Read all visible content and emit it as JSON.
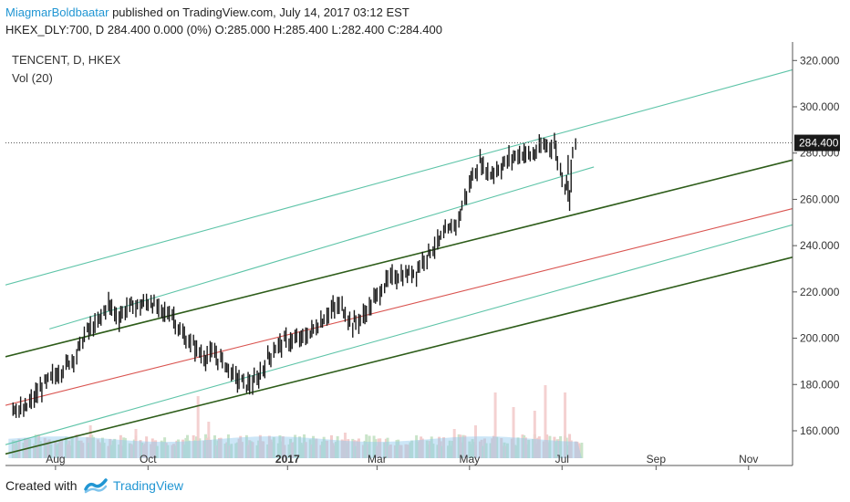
{
  "header": {
    "author": "MiagmarBoldbaatar",
    "published": " published on TradingView.com, July 14, 2017 03:12 EST",
    "ohlc_line": "HKEX_DLY:700, D  284.400 0.000 (0%) O:285.000 H:285.400 L:282.400 C:284.400"
  },
  "legend": {
    "symbol": "TENCENT, D, HKEX",
    "indicator": "Vol (20)"
  },
  "footer": {
    "created_with": "Created with",
    "brand": "TradingView"
  },
  "colors": {
    "candle": "#1a1a1a",
    "channel_outer": "#2e5d1a",
    "channel_mid": "#d9534f",
    "channel_inner": "#5ec4a8",
    "volume_up": "#c9e4c9",
    "volume_down": "#f3cccc",
    "volume_ma": "#8fc8ee",
    "price_label_bg": "#1a1a1a",
    "axis_text": "#333333",
    "brand": "#2196d3"
  },
  "chart_data": {
    "type": "line",
    "title": "TENCENT, D, HKEX",
    "last_price": "284.400",
    "y_axis": {
      "ticks": [
        "320.000",
        "300.000",
        "280.000",
        "260.000",
        "240.000",
        "220.000",
        "200.000",
        "180.000",
        "160.000"
      ],
      "range": [
        145,
        328
      ]
    },
    "x_axis": {
      "ticks": [
        "Aug",
        "Oct",
        "2017",
        "Mar",
        "May",
        "Jul",
        "Sep",
        "Nov"
      ],
      "bold_tick": "2017"
    },
    "price_series": {
      "name": "TENCENT",
      "points": [
        [
          "2016-07-04",
          171
        ],
        [
          "2016-07-11",
          168
        ],
        [
          "2016-07-18",
          174
        ],
        [
          "2016-07-25",
          180
        ],
        [
          "2016-08-01",
          184
        ],
        [
          "2016-08-08",
          188
        ],
        [
          "2016-08-15",
          193
        ],
        [
          "2016-08-22",
          203
        ],
        [
          "2016-08-29",
          206
        ],
        [
          "2016-09-05",
          215
        ],
        [
          "2016-09-12",
          209
        ],
        [
          "2016-09-19",
          214
        ],
        [
          "2016-09-26",
          214
        ],
        [
          "2016-10-03",
          216
        ],
        [
          "2016-10-10",
          211
        ],
        [
          "2016-10-17",
          211
        ],
        [
          "2016-10-24",
          201
        ],
        [
          "2016-10-31",
          197
        ],
        [
          "2016-11-07",
          192
        ],
        [
          "2016-11-14",
          193
        ],
        [
          "2016-11-21",
          189
        ],
        [
          "2016-11-28",
          183
        ],
        [
          "2016-12-05",
          180
        ],
        [
          "2016-12-12",
          181
        ],
        [
          "2016-12-19",
          191
        ],
        [
          "2016-12-26",
          197
        ],
        [
          "2017-01-02",
          199
        ],
        [
          "2017-01-09",
          199
        ],
        [
          "2017-01-16",
          202
        ],
        [
          "2017-01-23",
          207
        ],
        [
          "2017-01-30",
          212
        ],
        [
          "2017-02-06",
          214
        ],
        [
          "2017-02-13",
          206
        ],
        [
          "2017-02-20",
          209
        ],
        [
          "2017-02-27",
          216
        ],
        [
          "2017-03-06",
          223
        ],
        [
          "2017-03-13",
          227
        ],
        [
          "2017-03-20",
          227
        ],
        [
          "2017-03-27",
          229
        ],
        [
          "2017-04-03",
          236
        ],
        [
          "2017-04-10",
          241
        ],
        [
          "2017-04-17",
          246
        ],
        [
          "2017-04-24",
          251
        ],
        [
          "2017-05-01",
          266
        ],
        [
          "2017-05-08",
          276
        ],
        [
          "2017-05-15",
          271
        ],
        [
          "2017-05-22",
          274
        ],
        [
          "2017-05-29",
          278
        ],
        [
          "2017-06-05",
          280
        ],
        [
          "2017-06-12",
          279
        ],
        [
          "2017-06-19",
          283
        ],
        [
          "2017-06-26",
          284
        ],
        [
          "2017-07-03",
          266
        ],
        [
          "2017-07-10",
          284.4
        ]
      ]
    },
    "channel_lines": [
      {
        "role": "outer",
        "start": [
          "2016-06-29",
          192
        ],
        "end": [
          "2017-11-30",
          277
        ]
      },
      {
        "role": "outer",
        "start": [
          "2016-06-29",
          150
        ],
        "end": [
          "2017-11-30",
          235
        ]
      },
      {
        "role": "mid",
        "start": [
          "2016-06-29",
          171
        ],
        "end": [
          "2017-11-30",
          256
        ]
      },
      {
        "role": "inner",
        "start": [
          "2016-06-29",
          223
        ],
        "end": [
          "2017-11-30",
          316
        ]
      },
      {
        "role": "inner",
        "start": [
          "2016-07-28",
          204
        ],
        "end": [
          "2017-07-22",
          274
        ]
      },
      {
        "role": "inner",
        "start": [
          "2016-06-29",
          154
        ],
        "end": [
          "2017-11-30",
          249
        ]
      }
    ],
    "volume": {
      "ma_level": 0.55,
      "spikes": [
        [
          "2016-08-24",
          0.45
        ],
        [
          "2016-09-23",
          0.4
        ],
        [
          "2016-11-03",
          0.85
        ],
        [
          "2016-11-10",
          0.5
        ],
        [
          "2017-02-08",
          0.35
        ],
        [
          "2017-04-21",
          0.4
        ],
        [
          "2017-05-05",
          0.45
        ],
        [
          "2017-05-18",
          0.9
        ],
        [
          "2017-05-30",
          0.7
        ],
        [
          "2017-06-13",
          0.65
        ],
        [
          "2017-06-20",
          1.0
        ],
        [
          "2017-07-03",
          0.9
        ]
      ]
    }
  }
}
